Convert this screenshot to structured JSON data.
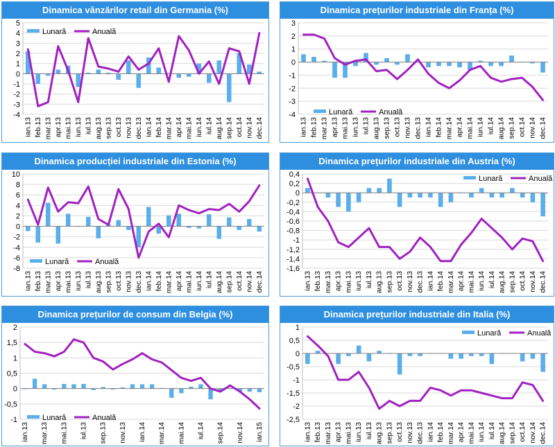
{
  "legend": {
    "monthly": "Lunară",
    "annual": "Anuală"
  },
  "colors": {
    "title_bg": "#2e8fe0",
    "bar": "#5aaeea",
    "line": "#a020c0"
  },
  "chart_data": [
    {
      "type": "bar+line",
      "title": "Dinamica vânzărilor retail din Germania (%)",
      "categories": [
        "ian.13",
        "feb.13",
        "mar.13",
        "apr.13",
        "mai.13",
        "iun.13",
        "iul.13",
        "aug.13",
        "sep.13",
        "oct.13",
        "nov.13",
        "dec.13",
        "ian.14",
        "feb.14",
        "mar.14",
        "apr.14",
        "mai.14",
        "iun.14",
        "iul.14",
        "aug.14",
        "sep.14",
        "oct.14",
        "nov.14",
        "dec.14"
      ],
      "tick_labels": [
        "ian.13",
        "feb.13",
        "mar.13",
        "apr.13",
        "mai.13",
        "iun.13",
        "iul.13",
        "aug.13",
        "sep.13",
        "oct.13",
        "nov.13",
        "dec.13",
        "ian.14",
        "feb.14",
        "mar.14",
        "apr.14",
        "mai.14",
        "iun.14",
        "iul.14",
        "aug.14",
        "sep.14",
        "oct.14",
        "nov.14",
        "dec.14"
      ],
      "series": [
        {
          "name": "Lunară",
          "kind": "bar",
          "values": [
            2.2,
            -1.0,
            -0.2,
            0.4,
            0.8,
            -1.3,
            0.1,
            0.4,
            0.1,
            -0.6,
            1.3,
            -1.4,
            1.6,
            0.6,
            0.0,
            -0.4,
            -0.3,
            1.0,
            -0.9,
            1.3,
            -2.8,
            2.0,
            0.9,
            0.2
          ]
        },
        {
          "name": "Anuală",
          "kind": "line",
          "values": [
            2.4,
            -3.2,
            -2.8,
            2.7,
            0.3,
            -2.8,
            3.5,
            0.7,
            0.5,
            0.2,
            1.7,
            0.4,
            1.0,
            2.5,
            -0.8,
            3.7,
            2.3,
            0.0,
            1.2,
            -1.0,
            2.5,
            2.2,
            -1.0,
            4.0
          ]
        }
      ],
      "ylim": [
        -4,
        5
      ],
      "yticks": [
        -4,
        -3,
        -2,
        -1,
        0,
        1,
        2,
        3,
        4,
        5
      ],
      "legend_position": "top-left"
    },
    {
      "type": "bar+line",
      "title": "Dinamica prețurilor industriale din Franța (%)",
      "categories": [
        "ian.13",
        "feb.13",
        "mar.13",
        "apr.13",
        "mai.13",
        "iun.13",
        "iul.13",
        "aug.13",
        "sep.13",
        "oct.13",
        "nov.13",
        "dec.13",
        "ian.14",
        "feb.14",
        "mar.14",
        "apr.14",
        "mai.14",
        "iun.14",
        "iul.14",
        "aug.14",
        "sep.14",
        "oct.14",
        "nov.14",
        "dec.14"
      ],
      "tick_labels": [
        "ian.13",
        "feb.13",
        "mar.13",
        "apr.13",
        "mai.13",
        "iun.13",
        "iul.13",
        "aug.13",
        "sep.13",
        "oct.13",
        "nov.13",
        "dec.13",
        "ian.14",
        "feb.14",
        "mar.14",
        "apr.14",
        "mai.14",
        "iun.14",
        "iul.14",
        "aug.14",
        "sep.14",
        "oct.14",
        "nov.14",
        "dec.14"
      ],
      "series": [
        {
          "name": "Lunară",
          "kind": "bar",
          "values": [
            0.6,
            0.4,
            0.1,
            -1.2,
            -1.2,
            -0.3,
            0.7,
            -0.2,
            0.3,
            -0.2,
            0.6,
            0.0,
            -0.4,
            -0.3,
            -0.3,
            -0.4,
            -0.6,
            0.1,
            -0.3,
            -0.3,
            0.5,
            0.0,
            -0.1,
            -0.8
          ]
        },
        {
          "name": "Anuală",
          "kind": "line",
          "values": [
            2.1,
            2.1,
            1.8,
            0.3,
            -0.2,
            0.1,
            0.2,
            -0.7,
            -0.6,
            -1.3,
            -0.6,
            0.2,
            -0.9,
            -1.6,
            -2.0,
            -1.4,
            -0.6,
            -0.3,
            -1.2,
            -1.5,
            -1.3,
            -1.2,
            -1.9,
            -2.9
          ]
        }
      ],
      "ylim": [
        -4,
        3
      ],
      "yticks": [
        -4,
        -3,
        -2,
        -1,
        0,
        1,
        2,
        3
      ],
      "legend_position": "bottom-left"
    },
    {
      "type": "bar+line",
      "title": "Dinamica producției industriale din Estonia (%)",
      "categories": [
        "ian.13",
        "feb.13",
        "mar.13",
        "apr.13",
        "mai.13",
        "iun.13",
        "iul.13",
        "aug.13",
        "sep.13",
        "oct.13",
        "nov.13",
        "dec.13",
        "ian.14",
        "feb.14",
        "mar.14",
        "apr.14",
        "mai.14",
        "iun.14",
        "iul.14",
        "aug.14",
        "sep.14",
        "oct.14",
        "nov.14",
        "dec.14"
      ],
      "tick_labels": [
        "ian.13",
        "feb.13",
        "mar.13",
        "apr.13",
        "mai.13",
        "iun.13",
        "iul.13",
        "aug.13",
        "sep.13",
        "oct.13",
        "nov.13",
        "dec.13",
        "ian.14",
        "feb.14",
        "mar.14",
        "apr.14",
        "mai.14",
        "iun.14",
        "iul.14",
        "aug.14",
        "sep.14",
        "oct.14",
        "nov.14",
        "dec.14"
      ],
      "series": [
        {
          "name": "Lunară",
          "kind": "bar",
          "values": [
            -0.9,
            -3.1,
            4.5,
            -3.3,
            2.4,
            0.0,
            1.8,
            -2.3,
            0.4,
            1.2,
            -0.7,
            -4.0,
            3.7,
            -1.4,
            2.1,
            2.4,
            -0.3,
            -0.4,
            2.3,
            -2.4,
            1.7,
            -0.7,
            1.4,
            -1.0
          ]
        },
        {
          "name": "Anuală",
          "kind": "line",
          "values": [
            5.1,
            0.3,
            7.4,
            2.8,
            4.6,
            4.4,
            7.6,
            1.4,
            0.3,
            7.1,
            3.3,
            -6.0,
            -1.0,
            0.5,
            -2.1,
            4.0,
            3.1,
            2.5,
            3.3,
            3.1,
            4.3,
            2.8,
            4.8,
            7.8
          ]
        }
      ],
      "ylim": [
        -8,
        10
      ],
      "yticks": [
        -8,
        -6,
        -4,
        -2,
        0,
        2,
        4,
        6,
        8,
        10
      ],
      "legend_position": "bottom-left"
    },
    {
      "type": "bar+line",
      "title": "Dinamica prețurilor industriale din Austria (%)",
      "categories": [
        "ian.13",
        "feb.13",
        "mar.13",
        "apr.13",
        "mai.13",
        "iun.13",
        "iul.13",
        "aug.13",
        "sep.13",
        "oct.13",
        "nov.13",
        "dec.13",
        "ian.14",
        "feb.14",
        "mar.14",
        "apr.14",
        "mai.14",
        "iun.14",
        "iul.14",
        "aug.14",
        "sep.14",
        "oct.14",
        "nov.14",
        "dec.14"
      ],
      "tick_labels": [
        "ian.13",
        "feb.13",
        "mar.13",
        "apr.13",
        "mai.13",
        "iun.13",
        "iul.13",
        "aug.13",
        "sep.13",
        "oct.13",
        "nov.13",
        "dec.13",
        "ian.14",
        "feb.14",
        "mar.14",
        "apr.14",
        "mai.14",
        "iun.14",
        "iul.14",
        "aug.14",
        "sep.14",
        "oct.14",
        "nov.14",
        "dec.14"
      ],
      "series": [
        {
          "name": "Lunară",
          "kind": "bar",
          "values": [
            0.1,
            0.0,
            -0.1,
            -0.3,
            -0.4,
            -0.2,
            0.1,
            0.1,
            0.3,
            -0.3,
            -0.1,
            -0.1,
            -0.1,
            -0.3,
            -0.2,
            0.0,
            -0.1,
            0.1,
            -0.1,
            -0.1,
            0.1,
            -0.1,
            -0.2,
            -0.5
          ]
        },
        {
          "name": "Anuală",
          "kind": "line",
          "values": [
            0.3,
            -0.3,
            -0.6,
            -1.05,
            -1.15,
            -0.95,
            -0.75,
            -1.15,
            -1.15,
            -1.4,
            -1.25,
            -0.95,
            -1.15,
            -1.45,
            -1.45,
            -1.1,
            -0.85,
            -0.55,
            -0.75,
            -0.95,
            -1.2,
            -0.97,
            -1.03,
            -1.45
          ]
        }
      ],
      "ylim": [
        -1.6,
        0.4
      ],
      "yticks": [
        -1.6,
        -1.4,
        -1.2,
        -1.0,
        -0.8,
        -0.6,
        -0.4,
        -0.2,
        0,
        0.2,
        0.4
      ],
      "ytick_labels": [
        "-1,6",
        "-1,4",
        "-1,2",
        "-1",
        "-0,8",
        "-0,6",
        "-0,4",
        "-0,2",
        "0",
        "0,2",
        "0,4"
      ],
      "legend_position": "top-right"
    },
    {
      "type": "bar+line",
      "title": "Dinamica prețurilor de consum din Belgia (%)",
      "categories": [
        "ian.13",
        "feb.13",
        "mar.13",
        "apr.13",
        "mai.13",
        "iun.13",
        "iul.13",
        "aug.13",
        "sep.13",
        "oct.13",
        "nov.13",
        "dec.13",
        "ian.14",
        "feb.14",
        "mar.14",
        "apr.14",
        "mai.14",
        "iun.14",
        "iul.14",
        "aug.14",
        "sep.14",
        "oct.14",
        "nov.14",
        "dec.14",
        "ian.15"
      ],
      "tick_labels": [
        "ian.13",
        "",
        "mar.13",
        "",
        "mai.13",
        "",
        "iul.13",
        "",
        "sep.13",
        "",
        "nov.13",
        "",
        "ian.14",
        "",
        "mar.14",
        "",
        "mai.14",
        "",
        "iul.14",
        "",
        "sep.14",
        "",
        "nov.14",
        "",
        "ian.15"
      ],
      "series": [
        {
          "name": "Lunară",
          "kind": "bar",
          "values": [
            -0.02,
            0.32,
            0.14,
            -0.03,
            0.15,
            0.14,
            0.15,
            -0.05,
            0.05,
            -0.03,
            0.04,
            0.14,
            0.14,
            0.14,
            0.02,
            -0.3,
            -0.15,
            0.06,
            0.14,
            -0.35,
            -0.1,
            0.0,
            -0.1,
            -0.1,
            -0.12
          ]
        },
        {
          "name": "Anuală",
          "kind": "line",
          "values": [
            1.45,
            1.2,
            1.15,
            1.05,
            1.2,
            1.6,
            1.5,
            1.0,
            0.88,
            0.62,
            0.8,
            0.95,
            1.15,
            0.95,
            0.85,
            0.6,
            0.35,
            0.25,
            0.35,
            0.0,
            -0.1,
            0.1,
            -0.1,
            -0.35,
            -0.65
          ]
        }
      ],
      "ylim": [
        -1,
        2
      ],
      "yticks": [
        -1,
        -0.5,
        0,
        0.5,
        1,
        1.5,
        2
      ],
      "ytick_labels": [
        "-1",
        "-0,5",
        "0",
        "0,5",
        "1",
        "1,5",
        "2"
      ],
      "legend_position": "bottom-left"
    },
    {
      "type": "bar+line",
      "title": "Dinamica prețurilor industriale din Italia (%)",
      "categories": [
        "ian.13",
        "feb.13",
        "mar.13",
        "apr.13",
        "mai.13",
        "iun.13",
        "iul.13",
        "aug.13",
        "sep.13",
        "oct.13",
        "nov.13",
        "dec.13",
        "ian.14",
        "feb.14",
        "mar.14",
        "apr.14",
        "mai.14",
        "iun.14",
        "iul.14",
        "aug.14",
        "sep.14",
        "oct.14",
        "nov.14",
        "dec.14"
      ],
      "tick_labels": [
        "ian.13",
        "feb.13",
        "mar.13",
        "apr.13",
        "mai.13",
        "iun.13",
        "iul.13",
        "aug.13",
        "sep.13",
        "oct.13",
        "nov.13",
        "dec.13",
        "ian.14",
        "feb.14",
        "mar.14",
        "apr.14",
        "mai.14",
        "iun.14",
        "iul.14",
        "aug.14",
        "sep.14",
        "oct.14",
        "nov.14",
        "dec.14"
      ],
      "series": [
        {
          "name": "Lunară",
          "kind": "bar",
          "values": [
            -0.4,
            0.1,
            0.0,
            -0.4,
            -0.1,
            0.3,
            -0.3,
            0.1,
            0.0,
            -0.8,
            -0.1,
            -0.1,
            0.0,
            0.0,
            -0.2,
            -0.2,
            -0.1,
            -0.1,
            -0.4,
            0.0,
            0.0,
            -0.3,
            -0.2,
            -0.7
          ]
        },
        {
          "name": "Anuală",
          "kind": "line",
          "values": [
            0.65,
            0.3,
            -0.1,
            -1.0,
            -1.0,
            -0.7,
            -1.3,
            -2.1,
            -1.8,
            -2.0,
            -1.8,
            -1.8,
            -1.3,
            -1.4,
            -1.6,
            -1.4,
            -1.4,
            -1.5,
            -1.6,
            -1.7,
            -1.7,
            -1.1,
            -1.2,
            -1.8
          ]
        }
      ],
      "ylim": [
        -2.5,
        1
      ],
      "yticks": [
        -2.5,
        -2,
        -1.5,
        -1,
        -0.5,
        0,
        0.5,
        1
      ],
      "ytick_labels": [
        "-2,5",
        "-2",
        "-1,5",
        "-1",
        "-0,5",
        "0",
        "0,5",
        "1"
      ],
      "legend_position": "top-right"
    }
  ]
}
